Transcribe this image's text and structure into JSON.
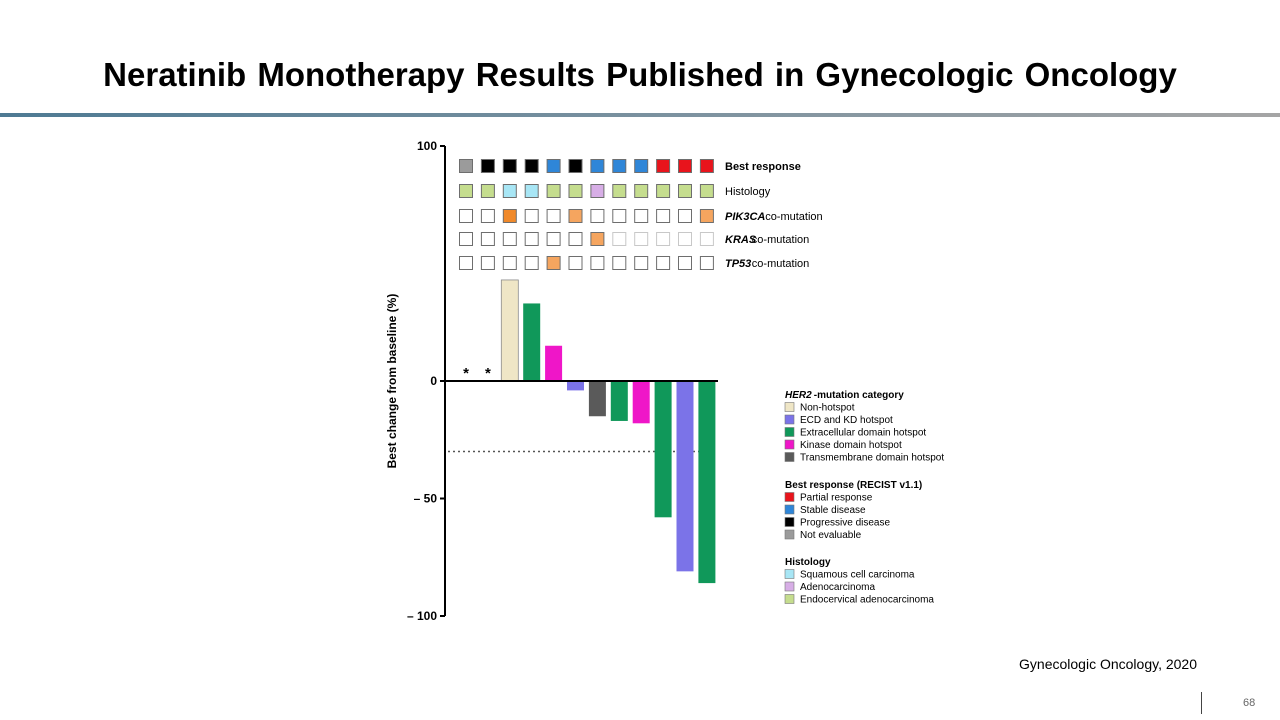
{
  "slide": {
    "title": "Neratinib Monotherapy Results Published in Gynecologic Oncology",
    "citation": "Gynecologic Oncology, 2020",
    "page_number": "68"
  },
  "chart_data": {
    "type": "bar",
    "chart_subtype": "waterfall",
    "ylabel": "Best change from baseline (%)",
    "ylim": [
      -100,
      100
    ],
    "yticks": [
      {
        "value": 100,
        "label": "100"
      },
      {
        "value": 0,
        "label": "0"
      },
      {
        "value": -50,
        "label": "– 50"
      },
      {
        "value": -100,
        "label": "– 100"
      }
    ],
    "reference_line": -30,
    "patients": [
      {
        "value": null,
        "mutation": "none",
        "marker": "*"
      },
      {
        "value": null,
        "mutation": "none",
        "marker": "*"
      },
      {
        "value": 43,
        "mutation": "nonhotspot"
      },
      {
        "value": 33,
        "mutation": "extracellular"
      },
      {
        "value": 15,
        "mutation": "kinase"
      },
      {
        "value": -4,
        "mutation": "ecd_kd"
      },
      {
        "value": -15,
        "mutation": "transmembrane"
      },
      {
        "value": -17,
        "mutation": "extracellular"
      },
      {
        "value": -18,
        "mutation": "kinase"
      },
      {
        "value": -58,
        "mutation": "extracellular"
      },
      {
        "value": -81,
        "mutation": "ecd_kd"
      },
      {
        "value": -86,
        "mutation": "extracellular"
      }
    ],
    "annotation_rows": [
      {
        "label_italic": "",
        "label": "Best response",
        "bold": true,
        "cells": [
          "ne",
          "pd",
          "pd",
          "pd",
          "sd",
          "pd",
          "sd",
          "sd",
          "sd",
          "pr",
          "pr",
          "pr"
        ]
      },
      {
        "label_italic": "",
        "label": "Histology",
        "bold": false,
        "cells": [
          "endo",
          "endo",
          "squam",
          "squam",
          "endo",
          "endo",
          "adeno",
          "endo",
          "endo",
          "endo",
          "endo",
          "endo"
        ]
      },
      {
        "label_italic": "PIK3CA",
        "label": " co-mutation",
        "bold": false,
        "cells": [
          "no",
          "no",
          "dark",
          "no",
          "no",
          "yes",
          "no",
          "no",
          "no",
          "no",
          "no",
          "yes"
        ]
      },
      {
        "label_italic": "KRAS",
        "label": " co-mutation",
        "bold": false,
        "cells": [
          "no",
          "no",
          "no",
          "no",
          "no",
          "no",
          "yes",
          "faint",
          "faint",
          "faint",
          "faint",
          "faint"
        ]
      },
      {
        "label_italic": "TP53",
        "label": " co-mutation",
        "bold": false,
        "cells": [
          "no",
          "no",
          "no",
          "no",
          "yes",
          "no",
          "no",
          "no",
          "no",
          "no",
          "no",
          "no"
        ]
      }
    ],
    "cell_colors": {
      "ne": "#9b9b9b",
      "pd": "#000000",
      "sd": "#2f86d8",
      "pr": "#e8141c",
      "endo": "#c5dd8e",
      "squam": "#a8e6f5",
      "adeno": "#d7aee6",
      "dark": "#f0892a",
      "yes": "#f5a55f",
      "no": "#ffffff",
      "faint": "#ffffff"
    },
    "mutation_colors": {
      "nonhotspot": "#efe6c6",
      "ecd_kd": "#7b73e8",
      "extracellular": "#10985a",
      "kinase": "#ef16c8",
      "transmembrane": "#5a5a5a"
    },
    "legend": [
      {
        "title_italic": "HER2",
        "title": "-mutation category",
        "items": [
          {
            "label": "Non-hotspot",
            "color": "#efe6c6"
          },
          {
            "label": "ECD and KD hotspot",
            "color": "#7b73e8"
          },
          {
            "label": "Extracellular domain hotspot",
            "color": "#10985a"
          },
          {
            "label": "Kinase domain hotspot",
            "color": "#ef16c8"
          },
          {
            "label": "Transmembrane domain hotspot",
            "color": "#5a5a5a"
          }
        ]
      },
      {
        "title_italic": "",
        "title": "Best response (RECIST v1.1)",
        "items": [
          {
            "label": "Partial response",
            "color": "#e8141c"
          },
          {
            "label": "Stable disease",
            "color": "#2f86d8"
          },
          {
            "label": "Progressive disease",
            "color": "#000000"
          },
          {
            "label": "Not evaluable",
            "color": "#9b9b9b"
          }
        ]
      },
      {
        "title_italic": "",
        "title": "Histology",
        "items": [
          {
            "label": "Squamous cell carcinoma",
            "color": "#a8e6f5"
          },
          {
            "label": "Adenocarcinoma",
            "color": "#d7aee6"
          },
          {
            "label": "Endocervical adenocarcinoma",
            "color": "#c5dd8e"
          }
        ]
      }
    ]
  }
}
